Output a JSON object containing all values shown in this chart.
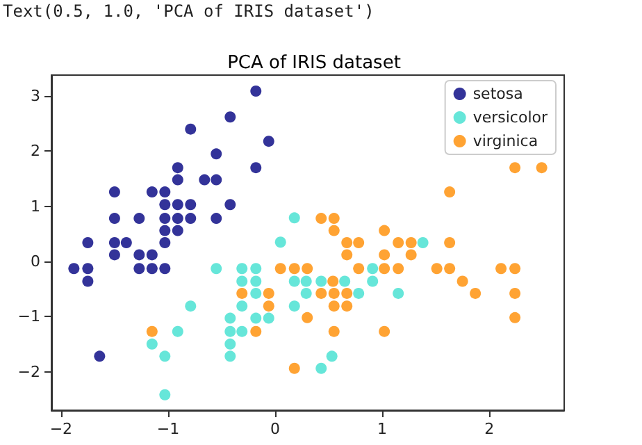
{
  "chart_data": {
    "type": "scatter",
    "title": "PCA of IRIS dataset",
    "annotations": [
      "Text(0.5, 1.0, 'PCA of IRIS dataset')"
    ],
    "xlim": [
      -2.09,
      2.7
    ],
    "ylim": [
      -2.7,
      3.38
    ],
    "xticks": [
      -2,
      -1,
      0,
      1,
      2
    ],
    "yticks": [
      -2,
      -1,
      0,
      1,
      2,
      3
    ],
    "legend": "top right",
    "marker": "circle",
    "series": [
      {
        "name": "setosa",
        "color": "#000080",
        "x": [
          -0.18,
          -0.42,
          -0.79,
          -0.06,
          -0.55,
          -0.18,
          -0.91,
          -0.91,
          -0.66,
          -0.55,
          -1.5,
          -1.15,
          -1.03,
          -1.03,
          -0.91,
          -0.79,
          -0.42,
          -1.5,
          -1.27,
          -1.03,
          -0.91,
          -0.79,
          -0.55,
          -1.03,
          -0.91,
          -1.75,
          -1.5,
          -1.39,
          -1.03,
          -1.5,
          -1.27,
          -1.15,
          -1.88,
          -1.75,
          -1.27,
          -1.15,
          -1.03,
          -1.75,
          -1.64
        ],
        "values": [
          3.09,
          2.62,
          2.4,
          2.18,
          1.95,
          1.7,
          1.7,
          1.48,
          1.48,
          1.48,
          1.26,
          1.26,
          1.26,
          1.03,
          1.03,
          1.03,
          1.03,
          0.78,
          0.78,
          0.78,
          0.78,
          0.78,
          0.78,
          0.56,
          0.56,
          0.34,
          0.34,
          0.34,
          0.34,
          0.12,
          0.12,
          0.12,
          -0.13,
          -0.13,
          -0.13,
          -0.13,
          -0.13,
          -0.36,
          -1.72
        ]
      },
      {
        "name": "versicolor",
        "color": "#40e0d0",
        "x": [
          0.18,
          0.05,
          -0.55,
          -0.31,
          -0.18,
          0.91,
          -0.31,
          -0.18,
          0.18,
          0.29,
          0.43,
          0.65,
          0.91,
          -0.18,
          0.29,
          0.78,
          1.15,
          -0.79,
          -0.31,
          0.18,
          -0.42,
          -0.18,
          -0.06,
          -0.91,
          -0.42,
          -0.31,
          -1.15,
          -0.42,
          -1.03,
          -0.42,
          0.53,
          0.43,
          -1.03,
          1.38
        ],
        "values": [
          0.79,
          0.35,
          -0.13,
          -0.13,
          -0.13,
          -0.13,
          -0.36,
          -0.36,
          -0.36,
          -0.36,
          -0.36,
          -0.36,
          -0.36,
          -0.58,
          -0.58,
          -0.58,
          -0.58,
          -0.81,
          -0.81,
          -0.81,
          -1.03,
          -1.03,
          -1.03,
          -1.27,
          -1.27,
          -1.27,
          -1.5,
          -1.5,
          -1.72,
          -1.72,
          -1.72,
          -1.94,
          -2.42,
          0.34
        ]
      },
      {
        "name": "virginica",
        "color": "#ff8c00",
        "x": [
          2.24,
          2.49,
          1.63,
          0.43,
          0.55,
          0.55,
          1.02,
          0.67,
          0.78,
          1.15,
          1.27,
          1.63,
          0.67,
          1.02,
          1.27,
          0.05,
          0.18,
          0.3,
          0.78,
          1.02,
          1.15,
          1.51,
          1.63,
          2.11,
          2.24,
          1.75,
          0.54,
          -0.31,
          -0.06,
          0.43,
          0.55,
          0.67,
          1.87,
          2.24,
          -0.06,
          0.55,
          0.67,
          0.3,
          2.24,
          -0.18,
          0.55,
          1.02,
          -1.15,
          0.18
        ],
        "values": [
          1.7,
          1.7,
          1.26,
          0.78,
          0.78,
          0.56,
          0.56,
          0.34,
          0.34,
          0.34,
          0.34,
          0.34,
          0.12,
          0.12,
          0.12,
          -0.13,
          -0.13,
          -0.13,
          -0.13,
          -0.13,
          -0.13,
          -0.13,
          -0.13,
          -0.13,
          -0.13,
          -0.36,
          -0.36,
          -0.58,
          -0.58,
          -0.58,
          -0.58,
          -0.58,
          -0.58,
          -0.58,
          -0.81,
          -0.81,
          -0.81,
          -1.02,
          -1.02,
          -1.27,
          -1.27,
          -1.27,
          -1.27,
          -1.94
        ]
      }
    ]
  }
}
